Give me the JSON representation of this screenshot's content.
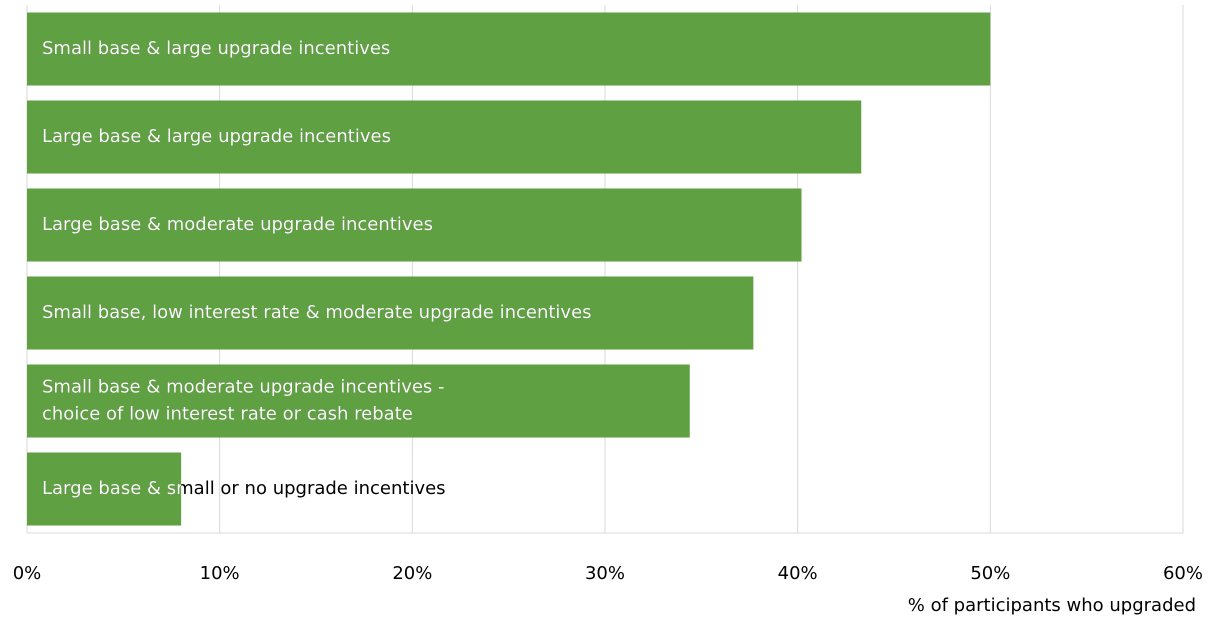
{
  "chart_data": {
    "type": "bar",
    "orientation": "horizontal",
    "x_label": "% of participants who upgraded",
    "categories": [
      "Small base & large upgrade incentives",
      "Large base & large upgrade incentives",
      "Large base & moderate upgrade incentives",
      "Small base, low interest rate & moderate upgrade incentives",
      [
        "Small base & moderate upgrade incentives -",
        "choice of low interest rate or cash rebate"
      ],
      "Large base & small or no upgrade incentives"
    ],
    "values": [
      50,
      43.3,
      40.2,
      37.7,
      34.4,
      8
    ],
    "color": "#5fa142",
    "xlim": [
      0,
      60
    ],
    "xticks": [
      {
        "value": 0,
        "label": "0%"
      },
      {
        "value": 10,
        "label": "10%"
      },
      {
        "value": 20,
        "label": "20%"
      },
      {
        "value": 30,
        "label": "30%"
      },
      {
        "value": 40,
        "label": "40%"
      },
      {
        "value": 50,
        "label": "50%"
      },
      {
        "value": 60,
        "label": "60%"
      }
    ],
    "grid": true
  }
}
